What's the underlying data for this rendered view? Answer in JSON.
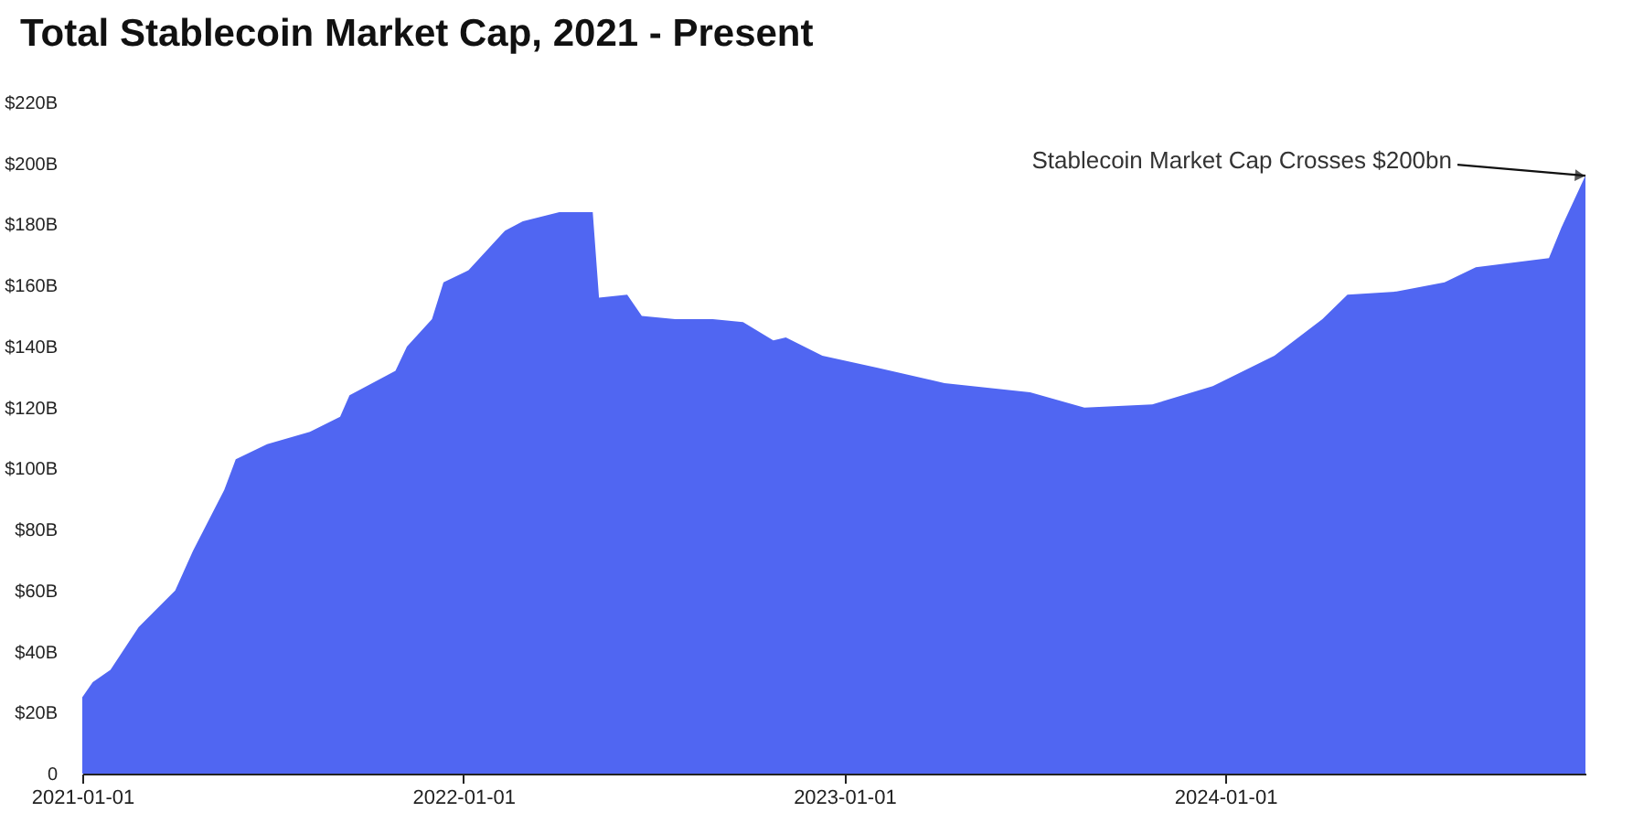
{
  "chart_data": {
    "type": "area",
    "title": "Total Stablecoin Market Cap, 2021 - Present",
    "x": [
      "2021-01-01",
      "2021-01-11",
      "2021-01-28",
      "2021-02-24",
      "2021-03-31",
      "2021-04-17",
      "2021-05-17",
      "2021-05-28",
      "2021-06-27",
      "2021-08-07",
      "2021-09-05",
      "2021-09-14",
      "2021-10-28",
      "2021-11-08",
      "2021-12-02",
      "2021-12-13",
      "2022-01-06",
      "2022-02-10",
      "2022-02-27",
      "2022-04-03",
      "2022-05-05",
      "2022-05-11",
      "2022-06-07",
      "2022-06-21",
      "2022-07-23",
      "2022-08-28",
      "2022-09-26",
      "2022-10-25",
      "2022-11-06",
      "2022-12-11",
      "2023-02-02",
      "2023-04-07",
      "2023-06-28",
      "2023-08-19",
      "2023-10-23",
      "2023-12-20",
      "2024-02-17",
      "2024-04-03",
      "2024-04-27",
      "2024-06-13",
      "2024-07-29",
      "2024-08-28",
      "2024-11-06",
      "2024-11-18",
      "2024-12-11"
    ],
    "series": [
      {
        "color": "#5066f2",
        "values": [
          25,
          30,
          34,
          48,
          60,
          73,
          93,
          103,
          108,
          112,
          117,
          124,
          132,
          140,
          149,
          161,
          165,
          178,
          181,
          184,
          184,
          156,
          157,
          150,
          149,
          149,
          148,
          142,
          143,
          137,
          133,
          128,
          125,
          120,
          121,
          127,
          137,
          149,
          157,
          158,
          161,
          166,
          169,
          179,
          196
        ]
      }
    ],
    "xlim": [
      "2021-01-01",
      "2024-12-11"
    ],
    "xticks": [
      "2021-01-01",
      "2022-01-01",
      "2023-01-01",
      "2024-01-01"
    ],
    "ylim": [
      0,
      220
    ],
    "yticks": [
      0,
      {
        "value": 20,
        "label": "$20B"
      },
      {
        "value": 40,
        "label": "$40B"
      },
      {
        "value": 60,
        "label": "$60B"
      },
      {
        "value": 80,
        "label": "$80B"
      },
      {
        "value": 100,
        "label": "$100B"
      },
      {
        "value": 120,
        "label": "$120B"
      },
      {
        "value": 140,
        "label": "$140B"
      },
      {
        "value": 160,
        "label": "$160B"
      },
      {
        "value": 180,
        "label": "$180B"
      },
      {
        "value": 200,
        "label": "$200B"
      },
      {
        "value": 220,
        "label": "$220B"
      }
    ],
    "grid": false,
    "annotations": [
      {
        "text": "Stablecoin Market Cap Crosses $200bn",
        "x": "2024-12-11",
        "y": 196
      }
    ]
  }
}
